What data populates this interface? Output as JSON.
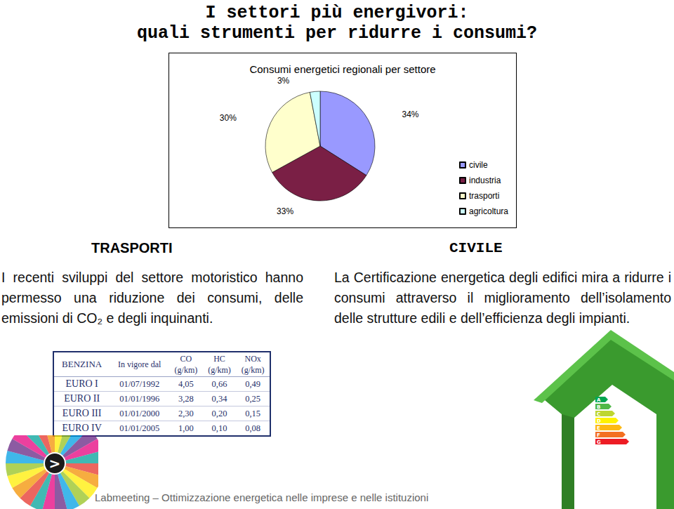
{
  "title": [
    "I settori più energivori:",
    "quali strumenti per ridurre i consumi?"
  ],
  "chart_data": {
    "type": "pie",
    "title": "Consumi energetici regionali per settore",
    "categories": [
      "civile",
      "industria",
      "trasporti",
      "agricoltura"
    ],
    "values": [
      34,
      33,
      30,
      3
    ],
    "value_labels": [
      "34%",
      "33%",
      "30%",
      "3%"
    ],
    "colors": [
      "#9999ff",
      "#7a1f45",
      "#ffffcc",
      "#ccffff"
    ],
    "legend": "right",
    "data_labels": true
  },
  "sections": [
    {
      "heading": "TRASPORTI",
      "text": "I recenti sviluppi del settore motoristico hanno permesso una riduzione dei consumi, delle emissioni di CO₂ e degli inquinanti."
    },
    {
      "heading": "CIVILE",
      "text": "La Certificazione energetica degli edifici mira a ridurre i consumi attraverso il miglioramento dell’isolamento delle strutture edili e dell’efficienza degli impianti."
    }
  ],
  "table": {
    "header": [
      [
        "BENZINA"
      ],
      [
        "In vigore dal"
      ],
      [
        "CO",
        "(g/km)"
      ],
      [
        "HC",
        "(g/km)"
      ],
      [
        "NOx",
        "(g/km)"
      ]
    ],
    "rows": [
      [
        "EURO I",
        "01/07/1992",
        "4,05",
        "0,66",
        "0,49"
      ],
      [
        "EURO II",
        "01/01/1996",
        "3,28",
        "0,34",
        "0,25"
      ],
      [
        "EURO III",
        "01/01/2000",
        "2,30",
        "0,20",
        "0,15"
      ],
      [
        "EURO IV",
        "01/01/2005",
        "1,00",
        "0,10",
        "0,08"
      ]
    ]
  },
  "energy_classes": [
    "A",
    "B",
    "C",
    "D",
    "E",
    "F",
    "G"
  ],
  "logo": ">",
  "footer": "Labmeeting – Ottimizzazione energetica nelle imprese e nelle istituzioni"
}
